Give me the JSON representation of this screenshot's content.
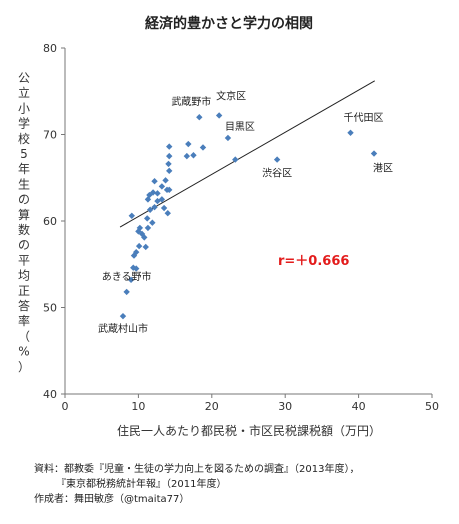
{
  "chart_data": {
    "type": "scatter",
    "title": "経済的豊かさと学力の相関",
    "xlabel": "住民一人あたり都民税・市区民税課税額（万円）",
    "ylabel": "公立小学校5年生の算数の平均正答率（%）",
    "xlim": [
      0,
      50
    ],
    "ylim": [
      40,
      80
    ],
    "xticks": [
      "0",
      "10",
      "20",
      "30",
      "40",
      "50"
    ],
    "yticks": [
      "40",
      "50",
      "60",
      "70",
      "80"
    ],
    "grid": false,
    "point_color": "#4a7ebb",
    "trendline": {
      "x1": 7.5,
      "y1": 59.3,
      "x2": 42.2,
      "y2": 76.2,
      "color": "#222222"
    },
    "correlation_label": "r=＋0.666",
    "points": [
      {
        "x": 7.9,
        "y": 49.0,
        "label": "武蔵村山市"
      },
      {
        "x": 8.4,
        "y": 51.8,
        "label": "あきる野市"
      },
      {
        "x": 9.0,
        "y": 53.2
      },
      {
        "x": 9.3,
        "y": 54.6
      },
      {
        "x": 9.7,
        "y": 54.5
      },
      {
        "x": 9.4,
        "y": 56.0
      },
      {
        "x": 9.7,
        "y": 56.4
      },
      {
        "x": 10.1,
        "y": 57.1
      },
      {
        "x": 10.5,
        "y": 58.5
      },
      {
        "x": 10.0,
        "y": 58.8
      },
      {
        "x": 10.2,
        "y": 59.2
      },
      {
        "x": 9.1,
        "y": 60.6
      },
      {
        "x": 10.8,
        "y": 58.1
      },
      {
        "x": 11.0,
        "y": 57.0
      },
      {
        "x": 11.3,
        "y": 59.2
      },
      {
        "x": 11.9,
        "y": 59.8
      },
      {
        "x": 11.2,
        "y": 60.3
      },
      {
        "x": 11.6,
        "y": 61.3
      },
      {
        "x": 12.2,
        "y": 61.6
      },
      {
        "x": 11.3,
        "y": 62.5
      },
      {
        "x": 12.0,
        "y": 63.3
      },
      {
        "x": 11.5,
        "y": 63.0
      },
      {
        "x": 12.6,
        "y": 63.2
      },
      {
        "x": 12.2,
        "y": 64.6
      },
      {
        "x": 12.6,
        "y": 62.3
      },
      {
        "x": 13.2,
        "y": 62.5
      },
      {
        "x": 13.2,
        "y": 64.0
      },
      {
        "x": 13.5,
        "y": 61.5
      },
      {
        "x": 13.7,
        "y": 64.7
      },
      {
        "x": 13.9,
        "y": 63.6
      },
      {
        "x": 14.2,
        "y": 63.6
      },
      {
        "x": 14.2,
        "y": 65.8
      },
      {
        "x": 14.1,
        "y": 66.6
      },
      {
        "x": 14.2,
        "y": 67.5
      },
      {
        "x": 14.2,
        "y": 68.6
      },
      {
        "x": 14.0,
        "y": 60.9
      },
      {
        "x": 16.6,
        "y": 67.5
      },
      {
        "x": 16.8,
        "y": 68.9
      },
      {
        "x": 17.5,
        "y": 67.6
      },
      {
        "x": 18.8,
        "y": 68.5
      },
      {
        "x": 18.3,
        "y": 72.0,
        "label": "武蔵野市"
      },
      {
        "x": 21.0,
        "y": 72.2,
        "label": "文京区"
      },
      {
        "x": 22.2,
        "y": 69.6,
        "label": "目黒区"
      },
      {
        "x": 23.2,
        "y": 67.1
      },
      {
        "x": 28.9,
        "y": 67.1,
        "label": "渋谷区"
      },
      {
        "x": 38.9,
        "y": 70.2,
        "label": "千代田区"
      },
      {
        "x": 42.1,
        "y": 67.8,
        "label": "港区"
      }
    ]
  },
  "notes": {
    "line1": "資料：都教委『児童・生徒の学力向上を図るための調査』（2013年度），",
    "line2": "『東京都税務統計年報』（2011年度）",
    "line3": "作成者：舞田敏彦（@tmaita77）"
  }
}
